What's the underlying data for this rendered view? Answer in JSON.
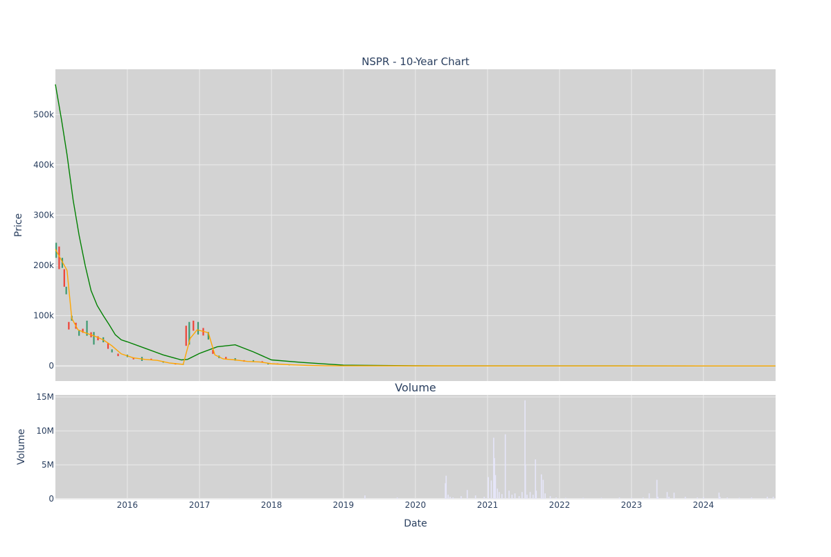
{
  "chart_data": [
    {
      "type": "candlestick",
      "title": "NSPR - 10-Year Chart",
      "xlabel": "",
      "ylabel": "Price",
      "ylim": [
        -30000,
        590000
      ],
      "y_ticks": [
        0,
        100000,
        200000,
        300000,
        400000,
        500000
      ],
      "y_tick_labels": [
        "0",
        "100k",
        "200k",
        "300k",
        "400k",
        "500k"
      ],
      "grid": true,
      "x_range": [
        "2015-01-01",
        "2025-01-01"
      ],
      "colors": {
        "up": "#3d9970",
        "down": "#ef4136",
        "ma_short": "#ffa500",
        "ma_long": "#008000",
        "plot_bg": "#d3d3d3"
      },
      "series": [
        {
          "kind": "price",
          "points": [
            [
              "2015-01-05",
              230000,
              30000
            ],
            [
              "2015-01-20",
              215000,
              45000
            ],
            [
              "2015-02-05",
              205000,
              20000
            ],
            [
              "2015-02-15",
              175000,
              35000
            ],
            [
              "2015-02-25",
              150000,
              15000
            ],
            [
              "2015-03-10",
              80000,
              15000
            ],
            [
              "2015-03-25",
              95000,
              10000
            ],
            [
              "2015-04-15",
              80000,
              12000
            ],
            [
              "2015-05-01",
              65000,
              10000
            ],
            [
              "2015-05-20",
              70000,
              8000
            ],
            [
              "2015-06-10",
              75000,
              30000
            ],
            [
              "2015-07-01",
              62000,
              10000
            ],
            [
              "2015-07-15",
              55000,
              25000
            ],
            [
              "2015-08-05",
              55000,
              8000
            ],
            [
              "2015-09-01",
              52000,
              10000
            ],
            [
              "2015-09-25",
              40000,
              12000
            ],
            [
              "2015-10-15",
              30000,
              6000
            ],
            [
              "2015-11-15",
              22000,
              5000
            ],
            [
              "2016-01-01",
              20000,
              5000
            ],
            [
              "2016-02-01",
              15000,
              4000
            ],
            [
              "2016-03-15",
              14000,
              8000
            ],
            [
              "2016-05-01",
              13000,
              3000
            ],
            [
              "2016-07-01",
              8000,
              3000
            ],
            [
              "2016-09-01",
              4000,
              2000
            ],
            [
              "2016-10-10",
              3000,
              1500
            ],
            [
              "2016-10-25",
              60000,
              40000
            ],
            [
              "2016-11-10",
              65000,
              45000
            ],
            [
              "2016-12-01",
              80000,
              20000
            ],
            [
              "2016-12-25",
              75000,
              25000
            ],
            [
              "2017-01-20",
              68000,
              15000
            ],
            [
              "2017-02-15",
              60000,
              15000
            ],
            [
              "2017-03-10",
              28000,
              8000
            ],
            [
              "2017-04-10",
              18000,
              5000
            ],
            [
              "2017-05-15",
              16000,
              4000
            ],
            [
              "2017-07-01",
              13000,
              5000
            ],
            [
              "2017-08-15",
              10000,
              3000
            ],
            [
              "2017-10-01",
              10000,
              3000
            ],
            [
              "2017-11-15",
              8000,
              3000
            ],
            [
              "2017-12-15",
              4000,
              2000
            ],
            [
              "2018-02-01",
              4000,
              2000
            ],
            [
              "2018-04-01",
              2000,
              1500
            ],
            [
              "2018-07-01",
              800,
              500
            ],
            [
              "2018-10-01",
              400,
              300
            ],
            [
              "2019-01-01",
              200,
              150
            ],
            [
              "2019-07-01",
              100,
              80
            ],
            [
              "2020-01-01",
              50,
              40
            ],
            [
              "2021-01-01",
              20,
              15
            ],
            [
              "2022-01-01",
              10,
              8
            ],
            [
              "2023-01-01",
              5,
              4
            ],
            [
              "2024-12-31",
              2,
              2
            ]
          ]
        },
        {
          "name": "",
          "kind": "moving_average_short",
          "x": [
            "2015-01-01",
            "2015-02-01",
            "2015-03-01",
            "2015-03-25",
            "2015-04-25",
            "2015-06-01",
            "2015-07-15",
            "2015-09-01",
            "2015-10-15",
            "2015-12-01",
            "2016-02-01",
            "2016-04-01",
            "2016-06-01",
            "2016-08-01",
            "2016-10-10",
            "2016-11-15",
            "2016-12-20",
            "2017-02-15",
            "2017-03-20",
            "2017-05-01",
            "2017-07-01",
            "2017-09-01",
            "2017-11-01",
            "2018-01-01",
            "2018-04-01",
            "2018-07-01",
            "2018-10-01",
            "2019-01-01",
            "2024-12-31"
          ],
          "y": [
            232000,
            210000,
            190000,
            95000,
            72000,
            66000,
            60000,
            52000,
            40000,
            24000,
            16000,
            13000,
            11000,
            6000,
            3000,
            55000,
            72000,
            66000,
            22000,
            14000,
            12000,
            9000,
            8000,
            4500,
            2500,
            1200,
            500,
            200,
            0
          ]
        },
        {
          "name": "",
          "kind": "moving_average_long",
          "x": [
            "2015-01-01",
            "2015-02-01",
            "2015-03-01",
            "2015-04-01",
            "2015-05-01",
            "2015-06-01",
            "2015-07-01",
            "2015-08-01",
            "2015-09-01",
            "2015-10-01",
            "2015-11-01",
            "2015-12-01",
            "2016-01-01",
            "2016-04-01",
            "2016-07-01",
            "2016-10-01",
            "2016-11-01",
            "2017-01-01",
            "2017-04-01",
            "2017-07-01",
            "2017-10-01",
            "2018-01-01",
            "2018-06-01",
            "2019-01-01",
            "2020-01-01",
            "2024-12-31"
          ],
          "y": [
            560000,
            490000,
            420000,
            330000,
            260000,
            200000,
            150000,
            120000,
            100000,
            82000,
            62000,
            52000,
            48000,
            35000,
            22000,
            12000,
            13000,
            25000,
            38000,
            42000,
            28000,
            12000,
            7000,
            1500,
            300,
            0
          ]
        }
      ]
    },
    {
      "type": "bar",
      "title": "Volume",
      "xlabel": "Date",
      "ylabel": "Volume",
      "ylim": [
        0,
        15300000
      ],
      "y_ticks": [
        0,
        5000000,
        10000000,
        15000000
      ],
      "y_tick_labels": [
        "0",
        "5M",
        "10M",
        "15M"
      ],
      "x_ticks": [
        "2016-01-01",
        "2017-01-01",
        "2018-01-01",
        "2019-01-01",
        "2020-01-01",
        "2021-01-01",
        "2022-01-01",
        "2023-01-01",
        "2024-01-01"
      ],
      "x_tick_labels": [
        "2016",
        "2017",
        "2018",
        "2019",
        "2020",
        "2021",
        "2022",
        "2023",
        "2024"
      ],
      "grid": true,
      "colors": {
        "bar": "#e6e6fa"
      },
      "x": [
        "2015-06-01",
        "2016-06-01",
        "2017-06-01",
        "2018-06-01",
        "2019-04-20",
        "2019-10-01",
        "2020-06-01",
        "2020-06-05",
        "2020-06-15",
        "2020-06-25",
        "2020-07-10",
        "2020-08-20",
        "2020-09-20",
        "2020-11-01",
        "2020-12-15",
        "2021-01-05",
        "2021-01-20",
        "2021-02-01",
        "2021-02-05",
        "2021-02-10",
        "2021-02-20",
        "2021-03-01",
        "2021-03-15",
        "2021-04-01",
        "2021-04-20",
        "2021-05-05",
        "2021-05-20",
        "2021-06-10",
        "2021-06-25",
        "2021-07-10",
        "2021-07-12",
        "2021-07-20",
        "2021-08-05",
        "2021-08-20",
        "2021-09-01",
        "2021-09-05",
        "2021-10-01",
        "2021-10-10",
        "2021-10-20",
        "2021-11-15",
        "2021-12-15",
        "2022-02-01",
        "2022-05-01",
        "2022-08-01",
        "2022-11-01",
        "2023-01-01",
        "2023-03-01",
        "2023-04-01",
        "2023-05-10",
        "2023-05-15",
        "2023-07-01",
        "2023-07-10",
        "2023-08-05",
        "2023-10-01",
        "2023-12-01",
        "2024-01-01",
        "2024-03-20",
        "2024-03-25",
        "2024-05-01",
        "2024-07-01",
        "2024-09-01",
        "2024-11-20",
        "2024-12-20"
      ],
      "values": [
        50000,
        40000,
        40000,
        60000,
        500000,
        200000,
        2300000,
        3400000,
        600000,
        300000,
        200000,
        400000,
        1300000,
        500000,
        300000,
        3200000,
        2700000,
        9000000,
        6000000,
        3500000,
        1500000,
        1000000,
        700000,
        9500000,
        1200000,
        600000,
        800000,
        400000,
        1000000,
        14500000,
        5000000,
        600000,
        1000000,
        600000,
        5800000,
        1200000,
        3600000,
        2800000,
        800000,
        400000,
        200000,
        150000,
        150000,
        150000,
        200000,
        150000,
        200000,
        800000,
        2800000,
        300000,
        1000000,
        300000,
        900000,
        300000,
        200000,
        250000,
        900000,
        300000,
        200000,
        150000,
        200000,
        300000,
        300000
      ]
    }
  ]
}
